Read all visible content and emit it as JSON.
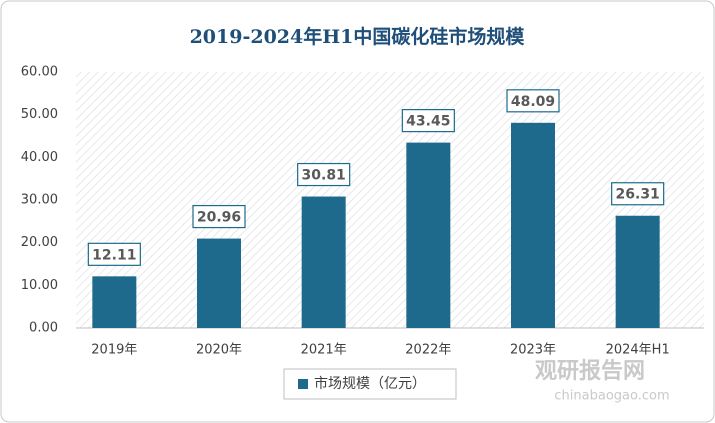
{
  "chart_data": {
    "type": "bar",
    "title": "2019-2024年H1中国碳化硅市场规模",
    "categories": [
      "2019年",
      "2020年",
      "2021年",
      "2022年",
      "2023年",
      "2024年H1"
    ],
    "series": [
      {
        "name": "市场规模（亿元）",
        "color": "#1d6a8c",
        "values": [
          12.11,
          20.96,
          30.81,
          43.45,
          48.09,
          26.31
        ]
      }
    ],
    "ylim": [
      0,
      60
    ],
    "yticks": [
      {
        "value": 0,
        "label": "0.00"
      },
      {
        "value": 10,
        "label": "10.00"
      },
      {
        "value": 20,
        "label": "20.00"
      },
      {
        "value": 30,
        "label": "30.00"
      },
      {
        "value": 40,
        "label": "40.00"
      },
      {
        "value": 50,
        "label": "50.00"
      },
      {
        "value": 60,
        "label": "60.00"
      }
    ],
    "watermark": [
      "观研报告网",
      "chinabaogao.com"
    ]
  }
}
